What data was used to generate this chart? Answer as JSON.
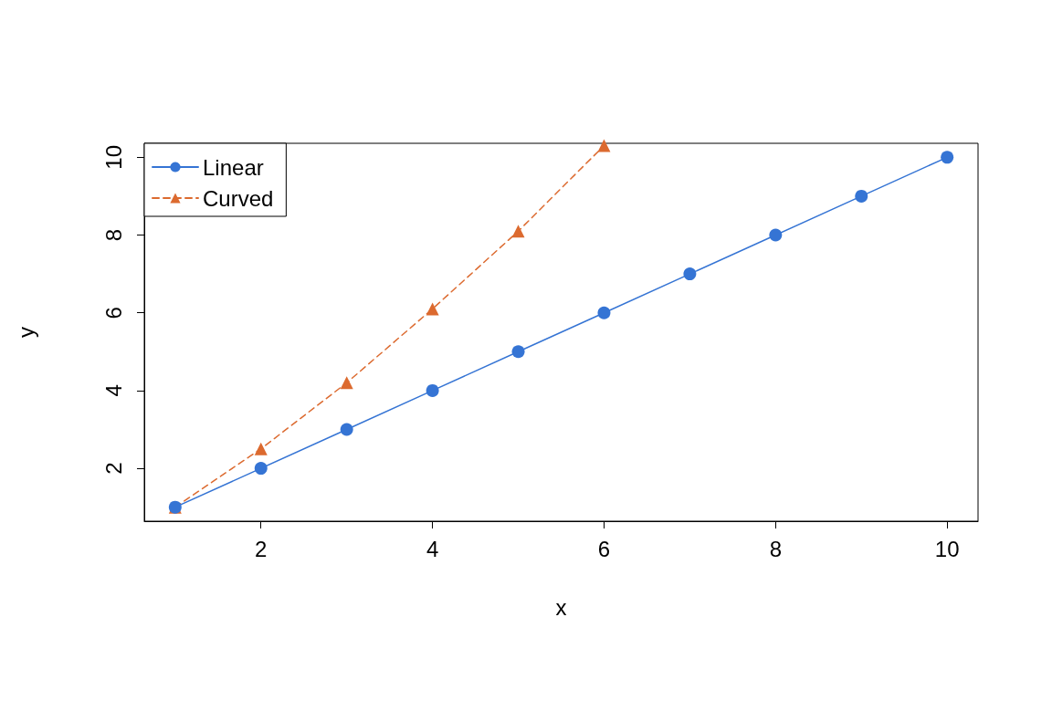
{
  "chart_data": {
    "type": "line",
    "xlabel": "x",
    "ylabel": "y",
    "xlim": [
      0.64,
      10.36
    ],
    "xticks": [
      2,
      4,
      6,
      8,
      10
    ],
    "ylim": [
      0.64,
      10.36
    ],
    "yticks": [
      2,
      4,
      6,
      8,
      10
    ],
    "grid": false,
    "legend": "top left",
    "series": [
      {
        "name": "Linear",
        "color": "#3574d4",
        "marker": "circle",
        "line_style": "solid",
        "x": [
          1,
          2,
          3,
          4,
          5,
          6,
          7,
          8,
          9,
          10
        ],
        "values": [
          1,
          2,
          3,
          4,
          5,
          6,
          7,
          8,
          9,
          10
        ]
      },
      {
        "name": "Curved",
        "color": "#dc6a2f",
        "marker": "triangle",
        "line_style": "dashed",
        "x": [
          1,
          2,
          3,
          4,
          5,
          6
        ],
        "values": [
          1,
          2.5,
          4.2,
          6.1,
          8.1,
          10.3
        ]
      }
    ]
  }
}
